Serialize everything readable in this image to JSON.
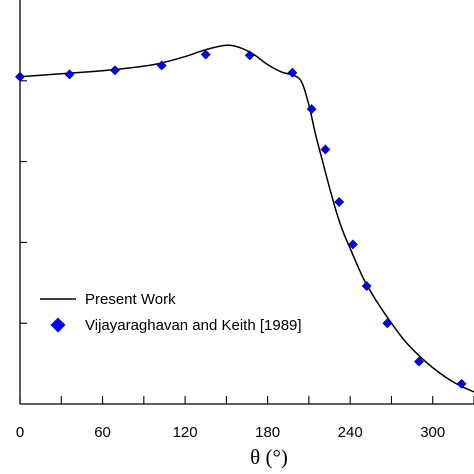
{
  "chart_data": {
    "type": "line",
    "xlabel": "θ (°)",
    "xlim": [
      0,
      330
    ],
    "xticks": [
      0,
      60,
      120,
      180,
      240,
      300
    ],
    "ylim": [
      0,
      1
    ],
    "yticks": [
      0.2,
      0.4,
      0.6,
      0.8
    ],
    "y_tick_labels_visible": false,
    "grid": false,
    "legend_position": "lower-left",
    "line_color": "#000000",
    "marker_color": "#0000ee",
    "series": [
      {
        "name": "Present Work",
        "style": "line",
        "x": [
          0,
          20,
          40,
          60,
          80,
          100,
          120,
          135,
          150,
          160,
          170,
          180,
          190,
          200,
          205,
          210,
          215,
          220,
          225,
          230,
          235,
          240,
          245,
          250,
          255,
          260,
          270,
          280,
          290,
          300,
          310,
          320,
          330
        ],
        "y": [
          0.81,
          0.815,
          0.82,
          0.825,
          0.832,
          0.842,
          0.86,
          0.877,
          0.888,
          0.882,
          0.865,
          0.84,
          0.822,
          0.812,
          0.795,
          0.74,
          0.665,
          0.6,
          0.535,
          0.475,
          0.425,
          0.385,
          0.345,
          0.308,
          0.278,
          0.25,
          0.2,
          0.155,
          0.12,
          0.09,
          0.065,
          0.045,
          0.03
        ]
      },
      {
        "name": "Vijayaraghavan and Keith [1989]",
        "style": "marker",
        "x": [
          0,
          36,
          69,
          103,
          135,
          167,
          198,
          212,
          222,
          232,
          242,
          252,
          267,
          290,
          321
        ],
        "y": [
          0.81,
          0.816,
          0.826,
          0.838,
          0.865,
          0.863,
          0.82,
          0.73,
          0.63,
          0.5,
          0.395,
          0.292,
          0.2,
          0.105,
          0.05
        ]
      }
    ]
  }
}
